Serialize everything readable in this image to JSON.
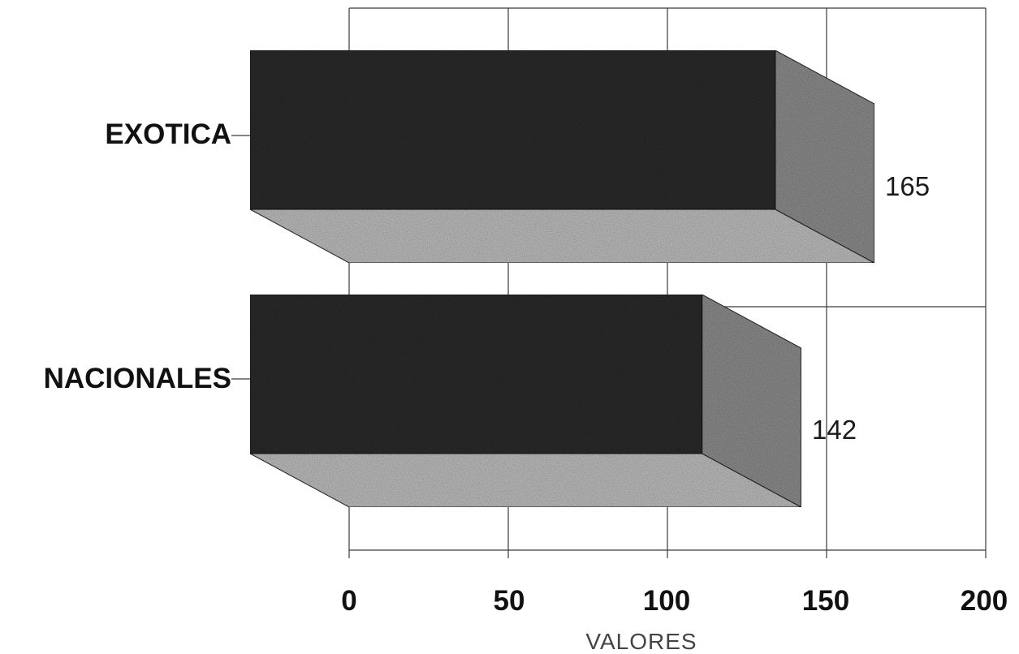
{
  "chart_data": {
    "type": "bar",
    "orientation": "horizontal",
    "style": "3d",
    "categories": [
      "EXOTICA",
      "NACIONALES"
    ],
    "values": [
      165,
      142
    ],
    "data_labels": [
      "165",
      "142"
    ],
    "xlabel": "VALORES",
    "xlim": [
      0,
      200
    ],
    "xticks": [
      0,
      50,
      100,
      150,
      200
    ],
    "xtick_labels": [
      "0",
      "50",
      "100",
      "150",
      "200"
    ],
    "grid": true,
    "legend": "none",
    "colors": {
      "bar_front": "#2b2b2b",
      "bar_top": "#bdbdbd",
      "bar_side": "#8c8c8c"
    }
  }
}
